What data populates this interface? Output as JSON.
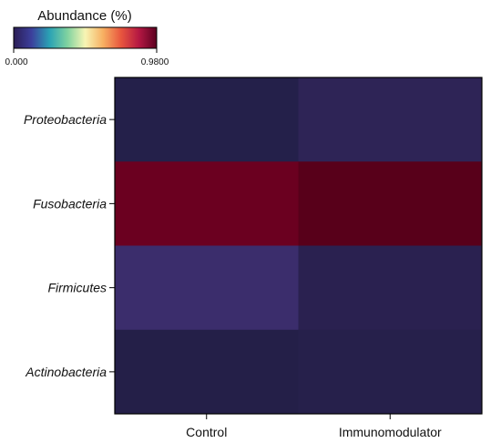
{
  "chart_data": {
    "type": "heatmap",
    "colorbar": {
      "title": "Abundance (%)",
      "min_label": "0.000",
      "max_label": "0.9800",
      "min": 0.0,
      "max": 0.98,
      "colors": [
        "#2b1e55",
        "#3c3f9c",
        "#2aa2b4",
        "#7fd2a0",
        "#f7f5b4",
        "#f7b062",
        "#e8563e",
        "#b51843",
        "#5a0020"
      ]
    },
    "rows": [
      "Proteobacteria",
      "Fusobacteria",
      "Firmicutes",
      "Actinobacteria"
    ],
    "columns": [
      "Control",
      "Immunomodulator"
    ],
    "values": [
      [
        0.03,
        0.09
      ],
      [
        0.86,
        0.93
      ],
      [
        0.13,
        0.05
      ],
      [
        0.02,
        0.03
      ]
    ],
    "cell_colors": [
      [
        "#24204a",
        "#2e2456"
      ],
      [
        "#6b0020",
        "#58001a"
      ],
      [
        "#3b2d6c",
        "#2a2150"
      ],
      [
        "#241f48",
        "#26204b"
      ]
    ]
  }
}
